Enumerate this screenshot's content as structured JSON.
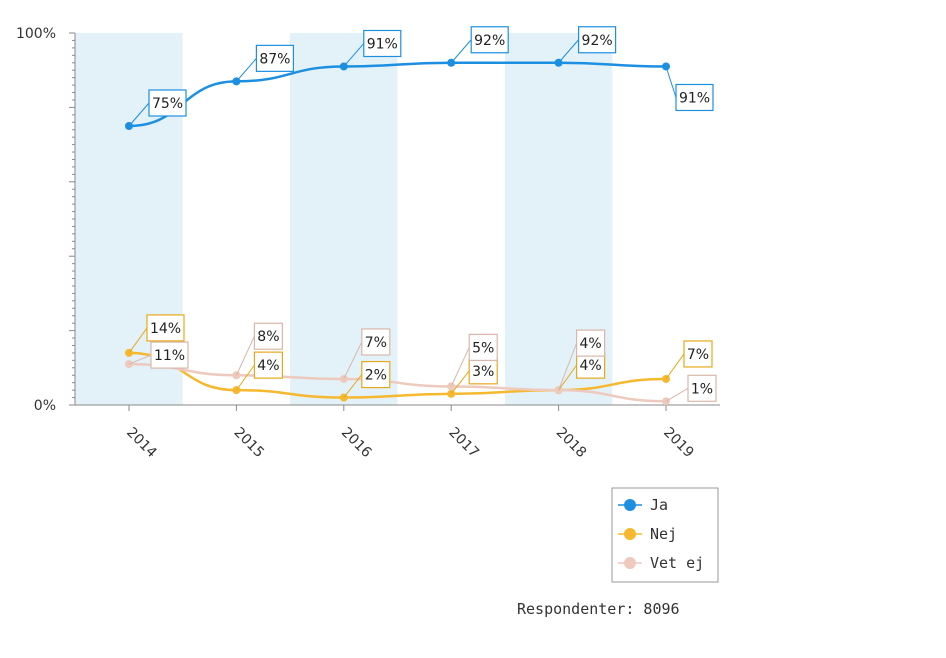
{
  "chart_data": {
    "type": "line",
    "categories": [
      "2014",
      "2015",
      "2016",
      "2017",
      "2018",
      "2019"
    ],
    "ylim": [
      0,
      100
    ],
    "y_ticks": [
      "0%",
      "100%"
    ],
    "legend_position": "bottom-right",
    "alternating_column_shading": true,
    "colors": {
      "band": "#e3f1f8",
      "axis": "#8a8a8a"
    },
    "series": [
      {
        "name": "Ja",
        "color": "#1d8fe1",
        "values": [
          75,
          87,
          91,
          92,
          92,
          91
        ],
        "labels": [
          "75%",
          "87%",
          "91%",
          "92%",
          "92%",
          "91%"
        ]
      },
      {
        "name": "Nej",
        "color": "#f5b82e",
        "values": [
          14,
          4,
          2,
          3,
          4,
          7
        ],
        "labels": [
          "14%",
          "4%",
          "2%",
          "3%",
          "4%",
          "7%"
        ]
      },
      {
        "name": "Vet ej",
        "color": "#eec9bd",
        "values": [
          11,
          8,
          7,
          5,
          4,
          1
        ],
        "labels": [
          "11%",
          "8%",
          "7%",
          "5%",
          "4%",
          "1%"
        ]
      }
    ]
  },
  "footer": {
    "respondents": "Respondenter: 8096"
  }
}
